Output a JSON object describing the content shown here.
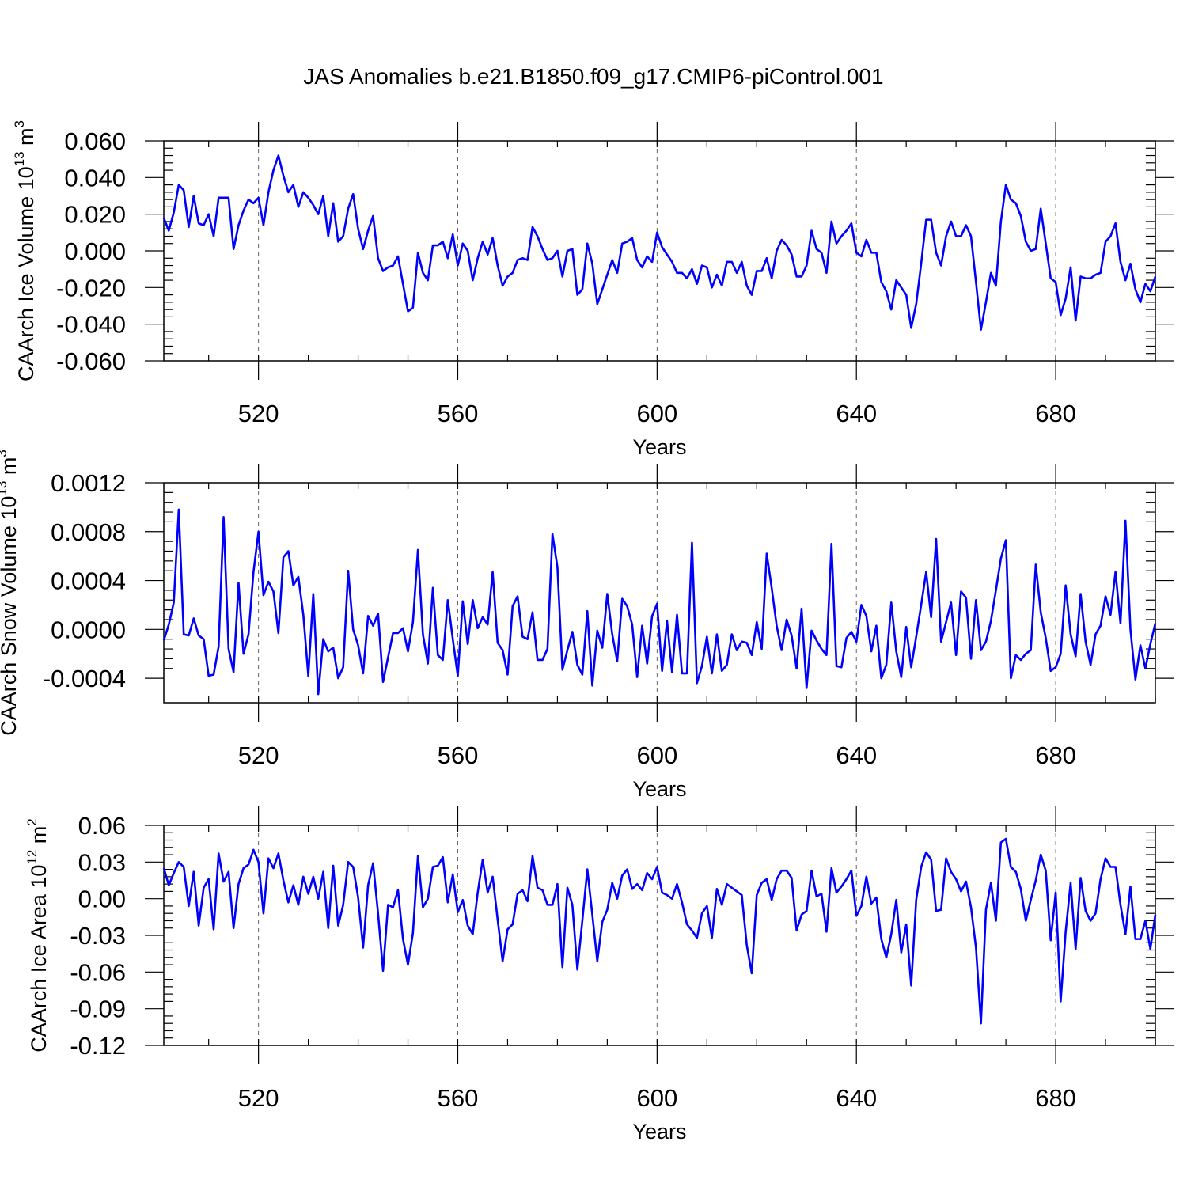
{
  "figure": {
    "title": "JAS Anomalies b.e21.B1850.f09_g17.CMIP6-piControl.001",
    "line_color": "#0000ff"
  },
  "chart_data": [
    {
      "type": "line",
      "title": "JAS Anomalies b.e21.B1850.f09_g17.CMIP6-piControl.001",
      "xlabel": "Years",
      "ylabel_base": "CAArch Ice Volume 10",
      "ylabel_exp1": "13",
      "ylabel_unit": " m",
      "ylabel_exp2": "3",
      "xlim": [
        501,
        700
      ],
      "ylim": [
        -0.06,
        0.06
      ],
      "xticks": [
        520,
        560,
        600,
        640,
        680
      ],
      "xtick_labels": [
        "520",
        "560",
        "600",
        "640",
        "680"
      ],
      "yticks": [
        -0.06,
        -0.04,
        -0.02,
        0.0,
        0.02,
        0.04,
        0.06
      ],
      "ytick_labels": [
        "-0.060",
        "-0.040",
        "-0.020",
        "0.000",
        "0.020",
        "0.040",
        "0.060"
      ],
      "grid": "vertical dashed at major x ticks",
      "x_start": 501,
      "values": [
        0.018,
        0.011,
        0.021,
        0.036,
        0.033,
        0.013,
        0.03,
        0.015,
        0.014,
        0.02,
        0.008,
        0.029,
        0.029,
        0.029,
        0.001,
        0.014,
        0.022,
        0.028,
        0.026,
        0.029,
        0.014,
        0.032,
        0.044,
        0.052,
        0.041,
        0.032,
        0.036,
        0.024,
        0.032,
        0.029,
        0.025,
        0.02,
        0.03,
        0.008,
        0.026,
        0.005,
        0.008,
        0.023,
        0.031,
        0.012,
        0.001,
        0.011,
        0.019,
        -0.004,
        -0.011,
        -0.009,
        -0.008,
        -0.003,
        -0.018,
        -0.033,
        -0.031,
        -0.001,
        -0.012,
        -0.016,
        0.003,
        0.003,
        0.005,
        -0.004,
        0.009,
        -0.008,
        0.004,
        0.0,
        -0.016,
        -0.004,
        0.005,
        -0.002,
        0.007,
        -0.008,
        -0.019,
        -0.014,
        -0.012,
        -0.005,
        -0.004,
        -0.005,
        0.013,
        0.008,
        0.001,
        -0.005,
        -0.004,
        0.0,
        -0.014,
        0.0,
        0.001,
        -0.024,
        -0.021,
        0.004,
        -0.007,
        -0.029,
        -0.021,
        -0.013,
        -0.005,
        -0.012,
        0.004,
        0.005,
        0.007,
        -0.005,
        -0.009,
        -0.003,
        -0.006,
        0.01,
        0.002,
        -0.002,
        -0.006,
        -0.012,
        -0.012,
        -0.015,
        -0.01,
        -0.018,
        -0.008,
        -0.009,
        -0.02,
        -0.013,
        -0.019,
        -0.006,
        -0.006,
        -0.012,
        -0.006,
        -0.019,
        -0.024,
        -0.011,
        -0.011,
        -0.004,
        -0.015,
        0.0,
        0.006,
        0.003,
        -0.002,
        -0.014,
        -0.014,
        -0.008,
        0.011,
        0.001,
        -0.001,
        -0.012,
        0.016,
        0.004,
        0.008,
        0.011,
        0.015,
        -0.001,
        -0.003,
        0.006,
        -0.001,
        -0.001,
        -0.017,
        -0.022,
        -0.032,
        -0.016,
        -0.02,
        -0.024,
        -0.042,
        -0.029,
        -0.007,
        0.017,
        0.017,
        -0.001,
        -0.008,
        0.008,
        0.016,
        0.008,
        0.008,
        0.014,
        0.008,
        -0.017,
        -0.043,
        -0.028,
        -0.012,
        -0.019,
        0.016,
        0.036,
        0.028,
        0.026,
        0.019,
        0.005,
        0.0,
        0.001,
        0.023,
        0.004,
        -0.015,
        -0.017,
        -0.035,
        -0.026,
        -0.009,
        -0.038,
        -0.014,
        -0.015,
        -0.015,
        -0.013,
        -0.012,
        0.005,
        0.008,
        0.015,
        -0.006,
        -0.016,
        -0.007,
        -0.021,
        -0.028,
        -0.018,
        -0.022,
        -0.014
      ]
    },
    {
      "type": "line",
      "xlabel": "Years",
      "ylabel_base": "CAArch Snow Volume 10",
      "ylabel_exp1": "13",
      "ylabel_unit": " m",
      "ylabel_exp2": "3",
      "xlim": [
        501,
        700
      ],
      "ylim": [
        -0.0006,
        0.0012
      ],
      "xticks": [
        520,
        560,
        600,
        640,
        680
      ],
      "xtick_labels": [
        "520",
        "560",
        "600",
        "640",
        "680"
      ],
      "yticks": [
        -0.0004,
        0.0,
        0.0004,
        0.0008,
        0.0012
      ],
      "ytick_labels": [
        "-0.0004",
        "0.0000",
        "0.0004",
        "0.0008",
        "0.0012"
      ],
      "grid": "vertical dashed at major x ticks",
      "x_start": 501,
      "values": [
        -9e-05,
        4e-05,
        0.00022,
        0.00098,
        -4e-05,
        -5e-05,
        9e-05,
        -5e-05,
        -8e-05,
        -0.00038,
        -0.00037,
        -0.00014,
        0.00092,
        -0.00016,
        -0.00035,
        0.00038,
        -0.0002,
        -4e-05,
        0.00047,
        0.0008,
        0.00028,
        0.00039,
        0.00031,
        -3e-05,
        0.00059,
        0.00064,
        0.00036,
        0.00043,
        0.00012,
        -0.00038,
        0.00029,
        -0.00053,
        -8e-05,
        -0.00018,
        -0.00015,
        -0.0004,
        -0.00031,
        0.00048,
        0.0,
        -0.00013,
        -0.00036,
        0.00011,
        3e-05,
        0.00013,
        -0.00043,
        -0.00023,
        -3e-05,
        -3e-05,
        1e-05,
        -0.00018,
        6e-05,
        0.00065,
        -4e-05,
        -0.00028,
        0.00034,
        -0.00021,
        -0.00025,
        0.00024,
        -8e-05,
        -0.00038,
        0.00023,
        -0.00012,
        0.00024,
        1e-05,
        0.0001,
        4e-05,
        0.00047,
        -0.00011,
        -0.00017,
        -0.00037,
        0.00019,
        0.00027,
        -6e-05,
        -8e-05,
        0.00014,
        -0.00025,
        -0.00025,
        -0.00016,
        0.00078,
        0.00051,
        -0.00033,
        -0.00017,
        -2e-05,
        -0.00029,
        -0.00037,
        0.00015,
        -0.00046,
        -1e-05,
        -0.00015,
        0.00029,
        -4e-05,
        -0.00026,
        0.00025,
        0.00019,
        4e-05,
        -0.00039,
        3e-05,
        -0.00028,
        0.00011,
        0.00021,
        -0.00034,
        7e-05,
        -0.00035,
        0.00012,
        -0.00036,
        -0.00036,
        0.00071,
        -0.00044,
        -0.0003,
        -6e-05,
        -0.00036,
        -4e-05,
        -0.00034,
        -0.00029,
        -4e-05,
        -0.00017,
        -0.0001,
        -0.00011,
        -0.00021,
        6e-05,
        -0.00016,
        0.00062,
        0.00034,
        3e-05,
        -0.00017,
        8e-05,
        -5e-05,
        -0.00032,
        0.00017,
        -0.00048,
        -1e-05,
        -9e-05,
        -0.00016,
        -0.00021,
        0.0007,
        -0.0003,
        -0.00031,
        -7e-05,
        -2e-05,
        -0.0001,
        0.0002,
        0.00011,
        -0.00018,
        3e-05,
        -0.0004,
        -0.00029,
        0.00022,
        -0.00018,
        -0.00039,
        2e-05,
        -0.00031,
        -6e-05,
        0.0002,
        0.00047,
        0.0001,
        0.00074,
        -0.0001,
        6e-05,
        0.00022,
        -0.00021,
        0.00031,
        0.00026,
        -0.00024,
        0.00024,
        -0.00017,
        -0.0001,
        7e-05,
        0.00032,
        0.00058,
        0.00073,
        -0.0004,
        -0.00021,
        -0.00025,
        -0.0002,
        -0.00017,
        0.00053,
        0.00014,
        -7e-05,
        -0.00034,
        -0.00031,
        -0.0002,
        0.00036,
        -4e-05,
        -0.00022,
        0.00029,
        -0.0001,
        -0.00029,
        -4e-05,
        3e-05,
        0.00027,
        0.00012,
        0.00047,
        5e-05,
        0.00089,
        0.0,
        -0.00041,
        -0.00013,
        -0.00032,
        -0.00012,
        5e-05
      ]
    },
    {
      "type": "line",
      "xlabel": "Years",
      "ylabel_base": "CAArch Ice Area 10",
      "ylabel_exp1": "12",
      "ylabel_unit": " m",
      "ylabel_exp2": "2",
      "xlim": [
        501,
        700
      ],
      "ylim": [
        -0.12,
        0.06
      ],
      "xticks": [
        520,
        560,
        600,
        640,
        680
      ],
      "xtick_labels": [
        "520",
        "560",
        "600",
        "640",
        "680"
      ],
      "yticks": [
        -0.12,
        -0.09,
        -0.06,
        -0.03,
        0.0,
        0.03,
        0.06
      ],
      "ytick_labels": [
        "-0.12",
        "-0.09",
        "-0.06",
        "-0.03",
        "0.00",
        "0.03",
        "0.06"
      ],
      "grid": "vertical dashed at major x ticks",
      "x_start": 501,
      "values": [
        0.025,
        0.011,
        0.021,
        0.03,
        0.026,
        -0.006,
        0.022,
        -0.022,
        0.009,
        0.016,
        -0.025,
        0.037,
        0.014,
        0.022,
        -0.024,
        0.012,
        0.025,
        0.028,
        0.04,
        0.03,
        -0.012,
        0.033,
        0.025,
        0.037,
        0.015,
        -0.003,
        0.011,
        -0.005,
        0.018,
        0.004,
        0.018,
        0.0,
        0.022,
        -0.024,
        0.027,
        -0.022,
        -0.005,
        0.03,
        0.026,
        0.001,
        -0.04,
        0.011,
        0.029,
        -0.012,
        -0.059,
        -0.005,
        -0.007,
        0.007,
        -0.033,
        -0.054,
        -0.028,
        0.035,
        -0.007,
        0.0,
        0.026,
        0.027,
        0.034,
        -0.003,
        0.02,
        -0.011,
        -0.001,
        -0.022,
        -0.029,
        0.005,
        0.032,
        0.005,
        0.018,
        -0.017,
        -0.051,
        -0.025,
        -0.021,
        0.004,
        0.007,
        -0.002,
        0.035,
        0.009,
        0.007,
        -0.005,
        -0.005,
        0.012,
        -0.056,
        0.009,
        -0.005,
        -0.058,
        -0.018,
        0.024,
        -0.013,
        -0.051,
        -0.019,
        -0.009,
        0.013,
        0.0,
        0.019,
        0.024,
        0.008,
        0.012,
        0.007,
        0.021,
        0.016,
        0.026,
        0.005,
        0.003,
        0.0,
        0.012,
        -0.003,
        -0.021,
        -0.026,
        -0.032,
        -0.012,
        -0.006,
        -0.032,
        0.008,
        -0.005,
        0.012,
        0.009,
        0.006,
        0.003,
        -0.038,
        -0.061,
        0.003,
        0.013,
        0.016,
        -0.001,
        0.016,
        0.023,
        0.023,
        0.017,
        -0.026,
        -0.013,
        -0.01,
        0.023,
        0.002,
        0.004,
        -0.027,
        0.025,
        0.005,
        0.01,
        0.016,
        0.023,
        -0.014,
        -0.006,
        0.018,
        -0.004,
        0.001,
        -0.033,
        -0.048,
        -0.029,
        -0.001,
        -0.044,
        -0.021,
        -0.071,
        -0.001,
        0.026,
        0.038,
        0.032,
        -0.01,
        -0.009,
        0.033,
        0.022,
        0.016,
        0.006,
        0.014,
        -0.007,
        -0.04,
        -0.102,
        -0.009,
        0.013,
        -0.018,
        0.046,
        0.049,
        0.026,
        0.022,
        0.008,
        -0.018,
        -0.001,
        0.015,
        0.036,
        0.023,
        -0.034,
        0.005,
        -0.084,
        -0.027,
        0.013,
        -0.041,
        0.017,
        -0.01,
        -0.018,
        -0.012,
        0.016,
        0.033,
        0.026,
        0.026,
        -0.005,
        -0.029,
        0.01,
        -0.033,
        -0.033,
        -0.018,
        -0.041,
        -0.013
      ]
    }
  ]
}
